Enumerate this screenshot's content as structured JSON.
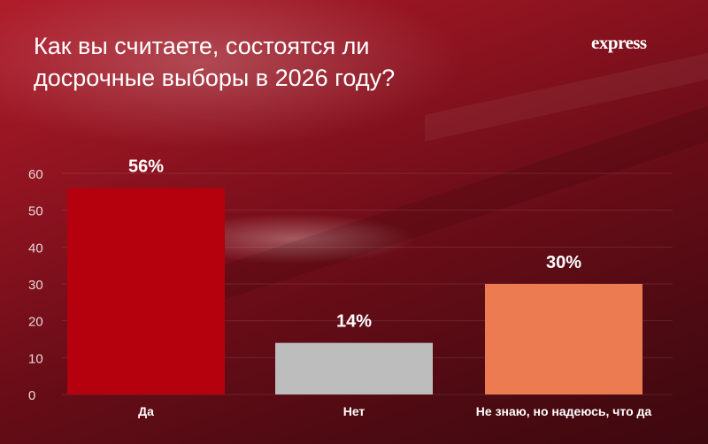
{
  "title": "Как вы считаете, состоятся ли досрочные выборы в 2026 году?",
  "logo": "express",
  "chart_data": {
    "type": "bar",
    "categories": [
      "Да",
      "Нет",
      "Не знаю, но надеюсь, что да"
    ],
    "values": [
      56,
      14,
      30
    ],
    "value_labels": [
      "56%",
      "14%",
      "30%"
    ],
    "colors": [
      "#b5000e",
      "#bdbdbd",
      "#ec7b52"
    ],
    "ylim": [
      0,
      60
    ],
    "yticks": [
      0,
      10,
      20,
      30,
      40,
      50,
      60
    ],
    "grid": true
  }
}
